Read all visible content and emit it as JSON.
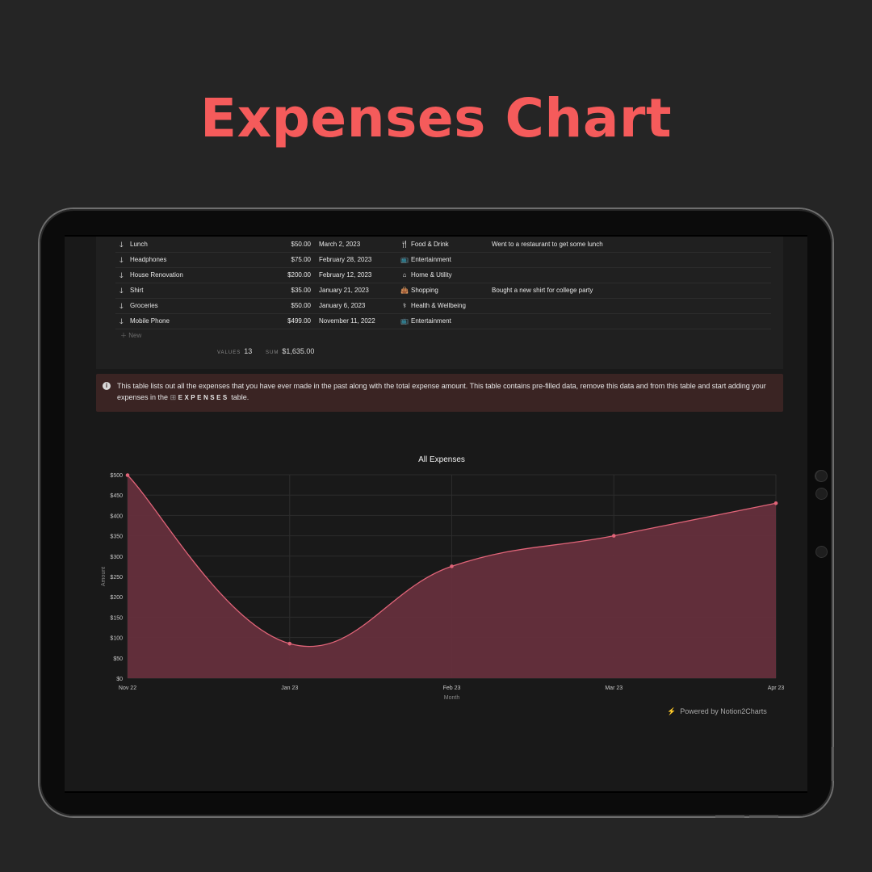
{
  "page": {
    "headline": "Expenses Chart"
  },
  "table": {
    "rows": [
      {
        "name": "Lunch",
        "amount": "$50.00",
        "date": "March 2, 2023",
        "category": "Food & Drink",
        "category_icon": "fork-icon",
        "note": "Went to a restaurant to get some lunch"
      },
      {
        "name": "Headphones",
        "amount": "$75.00",
        "date": "February 28, 2023",
        "category": "Entertainment",
        "category_icon": "tv-icon",
        "note": ""
      },
      {
        "name": "House Renovation",
        "amount": "$200.00",
        "date": "February 12, 2023",
        "category": "Home & Utility",
        "category_icon": "home-icon",
        "note": ""
      },
      {
        "name": "Shirt",
        "amount": "$35.00",
        "date": "January 21, 2023",
        "category": "Shopping",
        "category_icon": "bag-icon",
        "note": "Bought a new shirt for college party"
      },
      {
        "name": "Groceries",
        "amount": "$50.00",
        "date": "January 6, 2023",
        "category": "Health & Wellbeing",
        "category_icon": "stethoscope-icon",
        "note": ""
      },
      {
        "name": "Mobile Phone",
        "amount": "$499.00",
        "date": "November 11, 2022",
        "category": "Entertainment",
        "category_icon": "tv-icon",
        "note": ""
      }
    ],
    "new_label": "New",
    "values_label": "VALUES",
    "values_count": "13",
    "sum_label": "SUM",
    "sum_value": "$1,635.00"
  },
  "callout": {
    "text_before": "This table lists out all the expenses that you have ever made in the past along with the total expense amount. This table contains pre-filled data, remove this data and from this table and start adding your expenses in the",
    "ref": "EXPENSES",
    "text_after": "table."
  },
  "footer": {
    "powered": "Powered by Notion2Charts"
  },
  "chart_data": {
    "type": "area",
    "title": "All Expenses",
    "xlabel": "Month",
    "ylabel": "Amount",
    "x": [
      "Nov 22",
      "Jan 23",
      "Feb 23",
      "Mar 23",
      "Apr 23"
    ],
    "values": [
      499,
      85,
      275,
      350,
      430
    ],
    "yticks": [
      "$0",
      "$50",
      "$100",
      "$150",
      "$200",
      "$250",
      "$300",
      "$350",
      "$400",
      "$450",
      "$500"
    ],
    "ylim": [
      0,
      500
    ],
    "grid": true,
    "colors": {
      "line": "#e06478",
      "fill": "#652f3c",
      "point": "#e06478"
    }
  }
}
